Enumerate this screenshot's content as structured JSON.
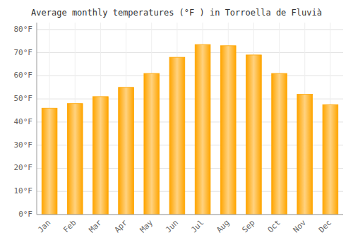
{
  "chart_data": {
    "type": "bar",
    "title": "Average monthly temperatures (°F ) in Torroella de Fluvià",
    "categories": [
      "Jan",
      "Feb",
      "Mar",
      "Apr",
      "May",
      "Jun",
      "Jul",
      "Aug",
      "Sep",
      "Oct",
      "Nov",
      "Dec"
    ],
    "values": [
      46,
      48,
      51,
      55,
      61,
      68,
      73.5,
      73,
      69,
      61,
      52,
      47.5
    ],
    "color": "#FFA500",
    "ylim": [
      0,
      83
    ],
    "yticks": [
      {
        "value": 0,
        "label": "0°F"
      },
      {
        "value": 10,
        "label": "10°F"
      },
      {
        "value": 20,
        "label": "20°F"
      },
      {
        "value": 30,
        "label": "30°F"
      },
      {
        "value": 40,
        "label": "40°F"
      },
      {
        "value": 50,
        "label": "50°F"
      },
      {
        "value": 60,
        "label": "60°F"
      },
      {
        "value": 70,
        "label": "70°F"
      },
      {
        "value": 80,
        "label": "80°F"
      }
    ],
    "grid": true
  }
}
